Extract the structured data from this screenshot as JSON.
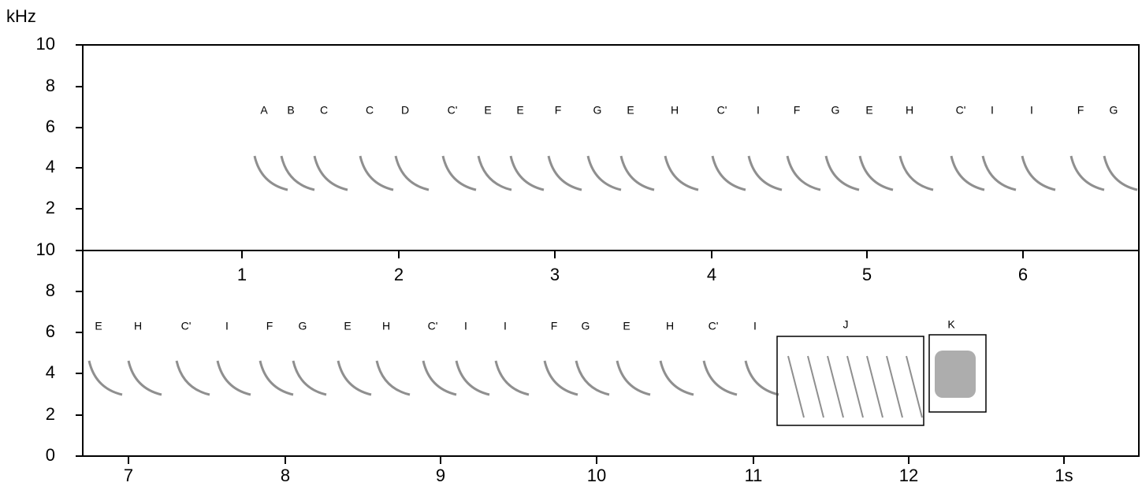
{
  "y_unit": "kHz",
  "top_panel": {
    "yticks": [
      "10",
      "8",
      "6",
      "4",
      "2"
    ],
    "xticks": [
      "1",
      "2",
      "3",
      "4",
      "5",
      "6"
    ],
    "syllables": [
      "A",
      "B",
      "C",
      "C",
      "D",
      "C'",
      "E",
      "E",
      "F",
      "G",
      "E",
      "H",
      "C'",
      "I",
      "F",
      "G",
      "E",
      "H",
      "C'",
      "I",
      "I",
      "F",
      "G"
    ]
  },
  "bottom_panel": {
    "yticks": [
      "10",
      "8",
      "6",
      "4",
      "2",
      "0"
    ],
    "xticks": [
      "7",
      "8",
      "9",
      "10",
      "11",
      "12",
      "1s"
    ],
    "syllables": [
      "E",
      "H",
      "C'",
      "I",
      "F",
      "G",
      "E",
      "H",
      "C'",
      "I",
      "I",
      "F",
      "G",
      "E",
      "H",
      "C'",
      "I"
    ],
    "boxes": [
      "J",
      "K"
    ]
  }
}
